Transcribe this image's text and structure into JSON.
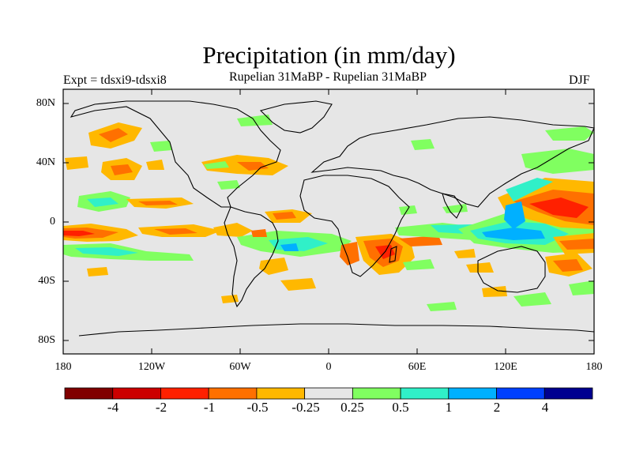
{
  "title": "Precipitation (in mm/day)",
  "subtitle": "Rupelian  31MaBP - Rupelian  31MaBP",
  "experiment": "Expt = tdsxi9-tdsxi8",
  "season": "DJF",
  "axes": {
    "y_ticks": [
      "80N",
      "40N",
      "0",
      "40S",
      "80S"
    ],
    "x_ticks": [
      "180",
      "120W",
      "60W",
      "0",
      "60E",
      "120E",
      "180"
    ]
  },
  "colorbar": {
    "labels": [
      "-4",
      "-2",
      "-1",
      "-0.5",
      "-0.25",
      "0.25",
      "0.5",
      "1",
      "2",
      "4"
    ],
    "colors": [
      "#800000",
      "#cc0000",
      "#ff2000",
      "#ff7000",
      "#ffb800",
      "#e6e6e6",
      "#80ff60",
      "#30f0c8",
      "#00b0ff",
      "#0040ff",
      "#000090"
    ]
  },
  "colors": {
    "ocean_bg": "#e6e6e6",
    "coast": "#000000"
  }
}
